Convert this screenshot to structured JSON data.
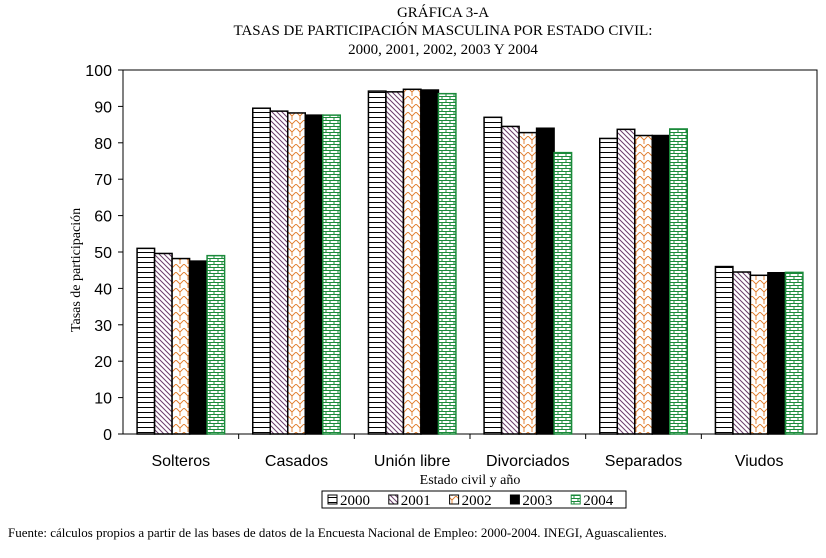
{
  "title_lines": [
    "GRÁFICA 3-A",
    "TASAS DE PARTICIPACIÓN MASCULINA POR ESTADO CIVIL:",
    "2000, 2001, 2002, 2003 Y 2004"
  ],
  "source": "Fuente: cálculos propios a partir de las bases de datos de la Encuesta Nacional de Empleo: 2000-2004. INEGI, Aguascalientes.",
  "chart_data": {
    "type": "bar",
    "title": "TASAS DE PARTICIPACIÓN MASCULINA POR ESTADO CIVIL: 2000, 2001, 2002, 2003 Y 2004",
    "xlabel": "Estado civil y año",
    "ylabel": "Tasas de participación",
    "ylim": [
      0,
      100
    ],
    "yticks": [
      0,
      10,
      20,
      30,
      40,
      50,
      60,
      70,
      80,
      90,
      100
    ],
    "grid": false,
    "legend_position": "bottom",
    "categories": [
      "Solteros",
      "Casados",
      "Unión libre",
      "Divorciados",
      "Separados",
      "Viudos"
    ],
    "series": [
      {
        "name": "2000",
        "pattern": "horizontal-lines",
        "color": "#000000",
        "values": [
          51.0,
          89.5,
          94.2,
          87.0,
          81.2,
          46.0
        ]
      },
      {
        "name": "2001",
        "pattern": "diagonal-lines",
        "color": "#6b3d6b",
        "values": [
          49.6,
          88.7,
          94.0,
          84.5,
          83.7,
          44.5
        ]
      },
      {
        "name": "2002",
        "pattern": "orange-weave",
        "color": "#e07a28",
        "values": [
          48.2,
          88.2,
          94.7,
          82.8,
          82.0,
          43.6
        ]
      },
      {
        "name": "2003",
        "pattern": "solid",
        "color": "#000000",
        "values": [
          47.5,
          87.6,
          94.5,
          84.0,
          82.0,
          44.3
        ]
      },
      {
        "name": "2004",
        "pattern": "green-brick",
        "color": "#1a8a3a",
        "values": [
          49.0,
          87.6,
          93.5,
          77.3,
          83.8,
          44.4
        ]
      }
    ]
  }
}
